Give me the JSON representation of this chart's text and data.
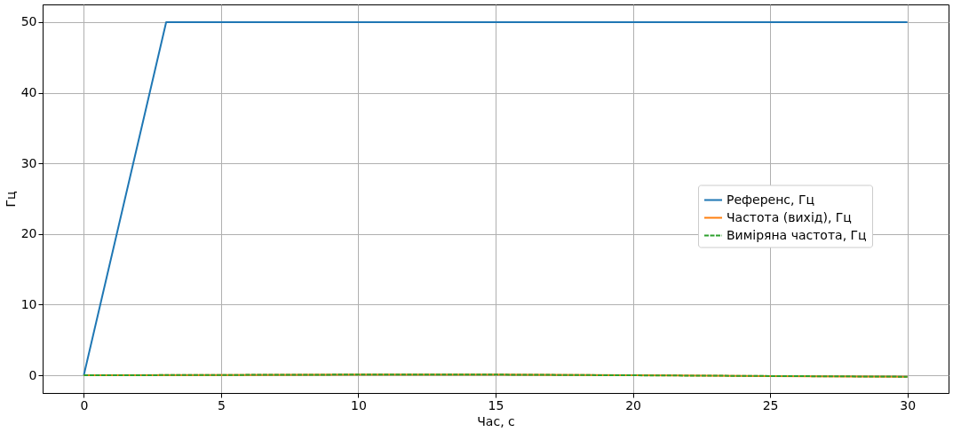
{
  "chart_data": {
    "type": "line",
    "xlabel": "Час, с",
    "ylabel": "Гц",
    "xlim": [
      -1.5,
      31.5
    ],
    "ylim": [
      -2.5,
      52.5
    ],
    "xticks": [
      0,
      5,
      10,
      15,
      20,
      25,
      30
    ],
    "yticks": [
      0,
      10,
      20,
      30,
      40,
      50
    ],
    "grid": true,
    "legend": "right",
    "marker": "none",
    "line_style": "solid",
    "series": [
      {
        "name": "Референс, Гц",
        "color": "#1f77b4",
        "x": [
          0,
          3,
          30
        ],
        "values": [
          0,
          50,
          50
        ]
      },
      {
        "name": "Частота (вихід), Гц",
        "color": "#ff7f0e",
        "x": [
          0,
          10,
          15,
          25,
          30
        ],
        "values": [
          0,
          0.1,
          0.1,
          -0.1,
          -0.2
        ]
      },
      {
        "name": "Виміряна частота, Гц",
        "color": "#2ca02c",
        "line_style": "dashed",
        "x": [
          0,
          10,
          15,
          25,
          30
        ],
        "values": [
          0,
          0.1,
          0.1,
          -0.1,
          -0.2
        ]
      }
    ]
  }
}
